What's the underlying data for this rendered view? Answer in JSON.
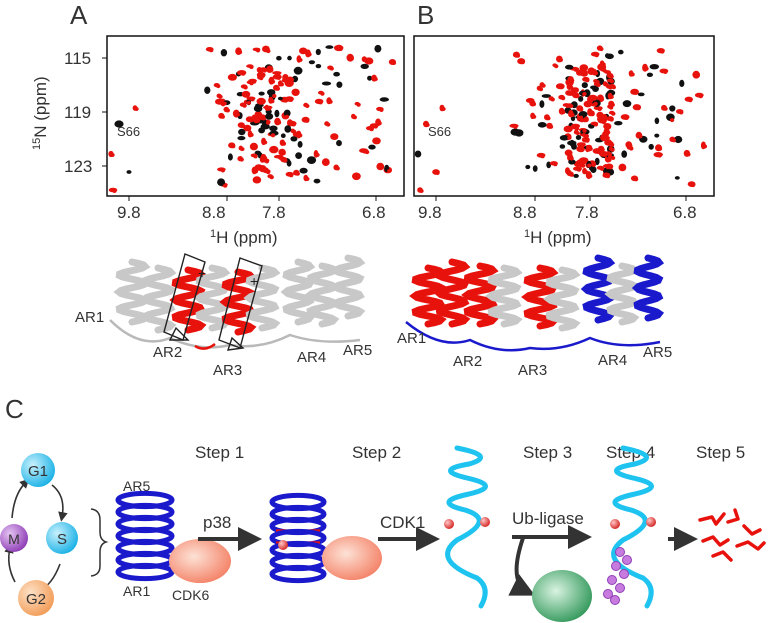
{
  "panels": {
    "a_label": "A",
    "b_label": "B",
    "c_label": "C"
  },
  "spectra": {
    "y_axis_label_sup": "15",
    "y_axis_label_rest": "N (ppm)",
    "x_axis_label_sup": "1",
    "x_axis_label_rest": "H (ppm)",
    "y_ticks": [
      "115",
      "119",
      "123"
    ],
    "x_ticks": [
      "9.8",
      "8.8",
      "7.8",
      "6.8"
    ],
    "peak_label": "S66"
  },
  "structures": {
    "a_repeats": [
      "AR1",
      "AR2",
      "AR3",
      "AR4",
      "AR5"
    ],
    "b_repeats": [
      "AR1",
      "AR2",
      "AR3",
      "AR4",
      "AR5"
    ]
  },
  "pathway": {
    "cell_cycle": [
      "G1",
      "S",
      "G2",
      "M"
    ],
    "steps": [
      "Step 1",
      "Step 2",
      "Step 3",
      "Step 4",
      "Step 5"
    ],
    "ar5_label": "AR5",
    "ar1_label": "AR1",
    "cdk6_label": "CDK6",
    "p38_label": "p38",
    "cdk1_label": "CDK1",
    "ub_label": "Ub-ligase"
  },
  "colors": {
    "red": "#e8120d",
    "black": "#111111",
    "blue": "#1a1acc",
    "cyan": "#1ec3f0",
    "g1": "#3ec3ec",
    "s": "#3ec3ec",
    "g2": "#f6b173",
    "m": "#a65ec8",
    "ubiquitin": "#c77bdf",
    "ligase": "#2fa05a"
  }
}
